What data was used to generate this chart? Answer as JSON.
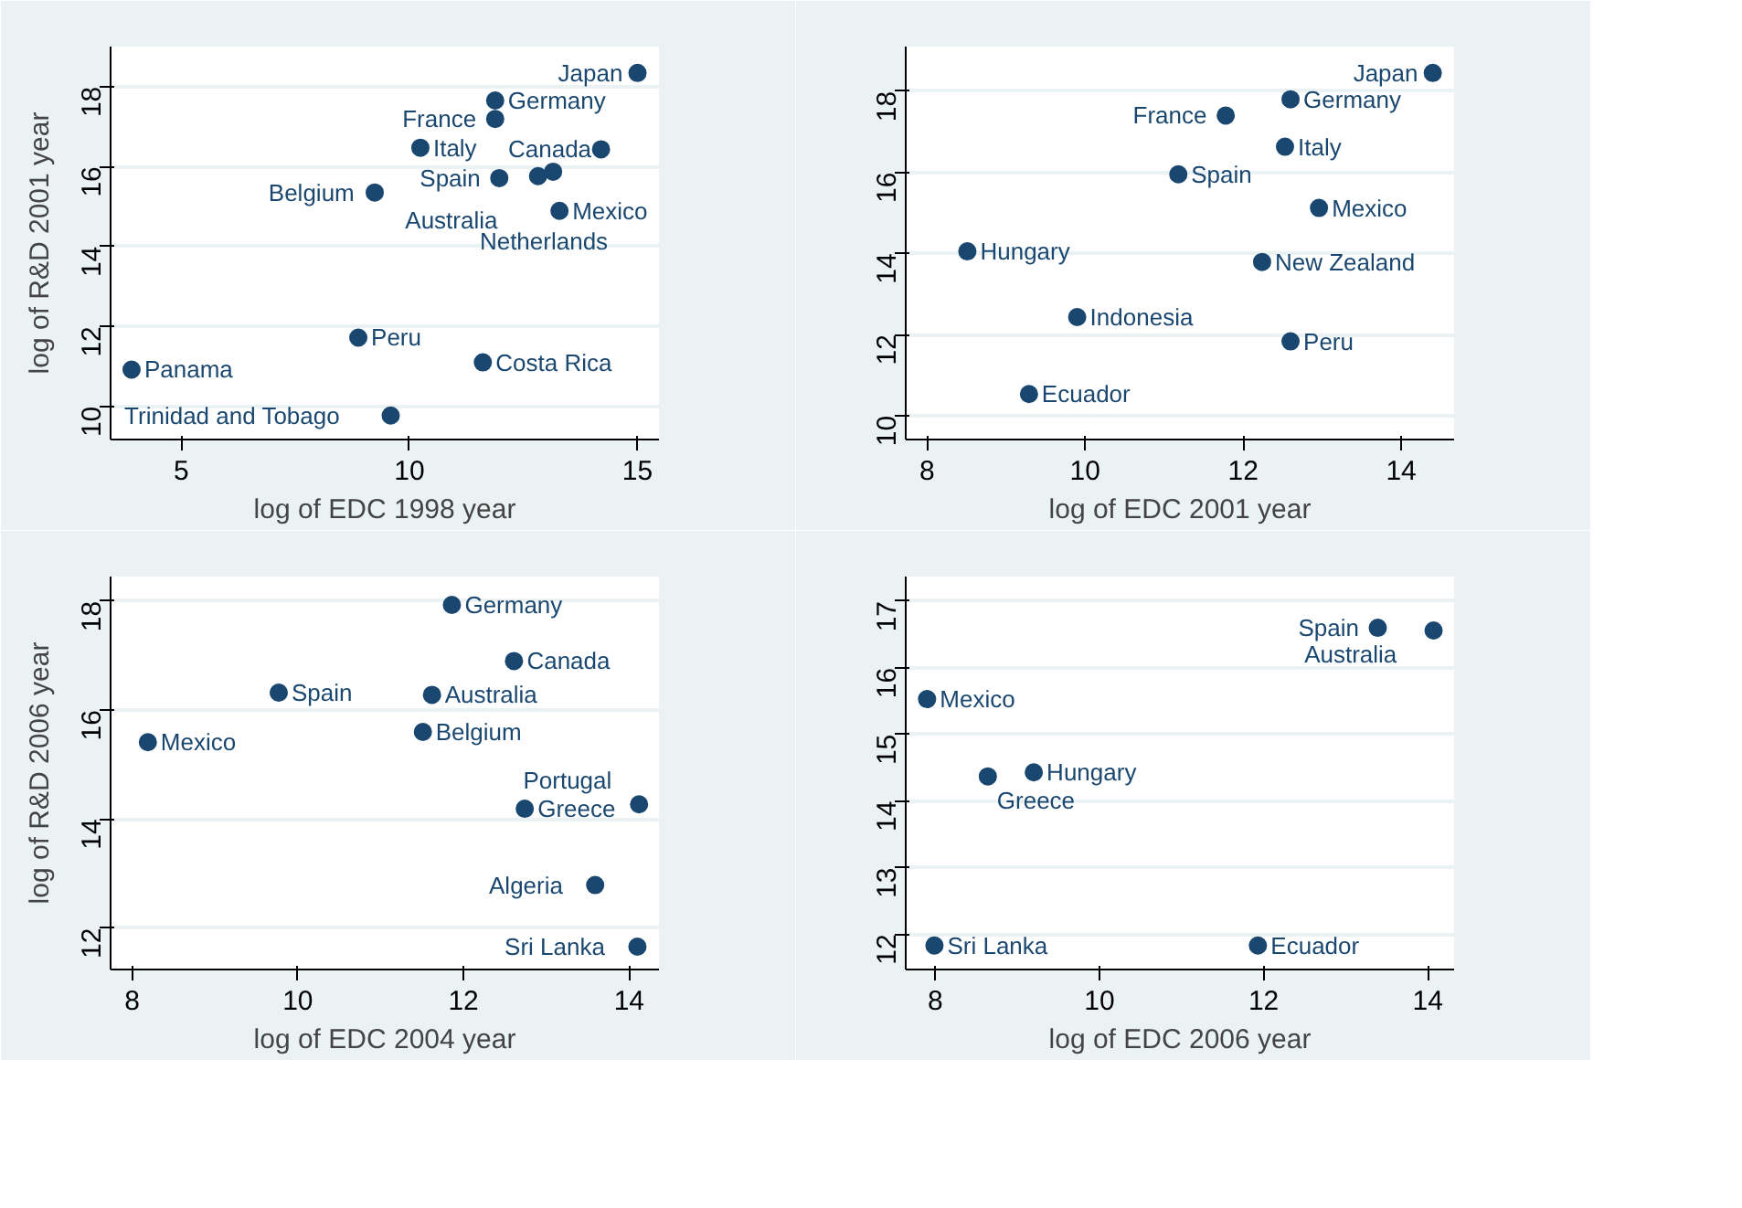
{
  "chart_data": [
    {
      "type": "scatter",
      "xlabel": "log of EDC 1998 year",
      "ylabel": "log of R&D 2001 year",
      "xlim": [
        3.45,
        15.47
      ],
      "ylim": [
        9.17,
        19.0
      ],
      "xticks": [
        5,
        10,
        15
      ],
      "yticks": [
        10,
        12,
        14,
        16,
        18
      ],
      "grid": "y",
      "marker": "circle",
      "color": "#1a476f",
      "x": [
        15.0,
        11.88,
        11.88,
        10.24,
        14.2,
        11.97,
        12.82,
        13.15,
        9.24,
        13.29,
        8.88,
        11.61,
        3.91,
        9.59
      ],
      "values": [
        18.34,
        17.65,
        17.19,
        16.47,
        16.43,
        15.71,
        15.76,
        15.87,
        15.35,
        14.89,
        11.72,
        11.1,
        10.92,
        9.77
      ],
      "annotations": [
        {
          "text": "Japan",
          "x": 15.0,
          "y": 18.34
        },
        {
          "text": "Germany",
          "x": 11.88,
          "y": 17.65
        },
        {
          "text": "France",
          "x": 11.88,
          "y": 17.19
        },
        {
          "text": "Italy",
          "x": 10.24,
          "y": 16.47
        },
        {
          "text": "Canada",
          "x": 14.2,
          "y": 16.43
        },
        {
          "text": "Spain",
          "x": 11.97,
          "y": 15.71
        },
        {
          "text": "Australia",
          "x": 12.82,
          "y": 15.76
        },
        {
          "text": "Netherlands",
          "x": 13.15,
          "y": 15.87
        },
        {
          "text": "Belgium",
          "x": 9.24,
          "y": 15.35
        },
        {
          "text": "Mexico",
          "x": 13.29,
          "y": 14.89
        },
        {
          "text": "Peru",
          "x": 8.88,
          "y": 11.72
        },
        {
          "text": "Costa Rica",
          "x": 11.61,
          "y": 11.1
        },
        {
          "text": "Panama",
          "x": 3.91,
          "y": 10.92
        },
        {
          "text": "Trinidad and Tobago",
          "x": 9.59,
          "y": 9.77
        }
      ]
    },
    {
      "type": "scatter",
      "xlabel": "log of EDC 2001 year",
      "xlim": [
        7.73,
        14.67
      ],
      "ylim": [
        9.41,
        19.1
      ],
      "xticks": [
        8,
        10,
        12,
        14
      ],
      "yticks": [
        10,
        12,
        14,
        16,
        18
      ],
      "grid": "y",
      "marker": "circle",
      "color": "#1a476f",
      "x": [
        14.4,
        12.6,
        11.78,
        12.53,
        11.18,
        12.96,
        8.51,
        12.24,
        9.9,
        12.6,
        9.29
      ],
      "values": [
        18.45,
        17.8,
        17.4,
        16.63,
        15.95,
        15.12,
        14.05,
        13.79,
        12.43,
        11.83,
        10.53
      ],
      "annotations": [
        {
          "text": "Japan",
          "x": 14.4,
          "y": 18.45
        },
        {
          "text": "Germany",
          "x": 12.6,
          "y": 17.8
        },
        {
          "text": "France",
          "x": 11.78,
          "y": 17.4
        },
        {
          "text": "Italy",
          "x": 12.53,
          "y": 16.63
        },
        {
          "text": "Spain",
          "x": 11.18,
          "y": 15.95
        },
        {
          "text": "Mexico",
          "x": 12.96,
          "y": 15.12
        },
        {
          "text": "Hungary",
          "x": 8.51,
          "y": 14.05
        },
        {
          "text": "New Zealand",
          "x": 12.24,
          "y": 13.79
        },
        {
          "text": "Indonesia",
          "x": 9.9,
          "y": 12.43
        },
        {
          "text": "Peru",
          "x": 12.6,
          "y": 11.83
        },
        {
          "text": "Ecuador",
          "x": 9.29,
          "y": 10.53
        }
      ]
    },
    {
      "type": "scatter",
      "xlabel": "log of EDC 2004 year",
      "ylabel": "log of R&D 2006 year",
      "xlim": [
        7.74,
        14.36
      ],
      "ylim": [
        11.24,
        18.45
      ],
      "xticks": [
        8,
        10,
        12,
        14
      ],
      "yticks": [
        12,
        14,
        16,
        18
      ],
      "grid": "y",
      "marker": "circle",
      "color": "#1a476f",
      "x": [
        11.86,
        12.61,
        9.77,
        11.62,
        11.51,
        8.19,
        12.74,
        14.12,
        13.59,
        14.1
      ],
      "values": [
        17.93,
        16.9,
        16.32,
        16.28,
        15.6,
        15.41,
        14.19,
        14.27,
        12.79,
        11.66
      ],
      "annotations": [
        {
          "text": "Germany",
          "x": 11.86,
          "y": 17.93
        },
        {
          "text": "Canada",
          "x": 12.61,
          "y": 16.9
        },
        {
          "text": "Spain",
          "x": 9.77,
          "y": 16.32
        },
        {
          "text": "Australia",
          "x": 11.62,
          "y": 16.28
        },
        {
          "text": "Belgium",
          "x": 11.51,
          "y": 15.6
        },
        {
          "text": "Mexico",
          "x": 8.19,
          "y": 15.41
        },
        {
          "text": "Greece",
          "x": 12.74,
          "y": 14.19
        },
        {
          "text": "Portugal",
          "x": 14.12,
          "y": 14.27
        },
        {
          "text": "Algeria",
          "x": 13.59,
          "y": 12.79
        },
        {
          "text": "Sri Lanka",
          "x": 14.1,
          "y": 11.66
        }
      ]
    },
    {
      "type": "scatter",
      "xlabel": "log of EDC 2006 year",
      "xlim": [
        7.64,
        14.32
      ],
      "ylim": [
        11.47,
        17.37
      ],
      "xticks": [
        8,
        10,
        12,
        14
      ],
      "yticks": [
        12,
        13,
        14,
        15,
        16,
        17
      ],
      "grid": "y",
      "marker": "circle",
      "color": "#1a476f",
      "x": [
        13.39,
        14.07,
        7.9,
        8.64,
        9.2,
        7.99,
        11.93
      ],
      "values": [
        16.6,
        16.56,
        15.53,
        14.37,
        14.43,
        11.83,
        11.83
      ],
      "annotations": [
        {
          "text": "Spain",
          "x": 13.39,
          "y": 16.6
        },
        {
          "text": "Australia",
          "x": 14.07,
          "y": 16.56
        },
        {
          "text": "Mexico",
          "x": 7.9,
          "y": 15.53
        },
        {
          "text": "Greece",
          "x": 8.64,
          "y": 14.37
        },
        {
          "text": "Hungary",
          "x": 9.2,
          "y": 14.43
        },
        {
          "text": "Sri Lanka",
          "x": 7.99,
          "y": 11.83
        },
        {
          "text": "Ecuador",
          "x": 11.93,
          "y": 11.83
        }
      ]
    }
  ]
}
